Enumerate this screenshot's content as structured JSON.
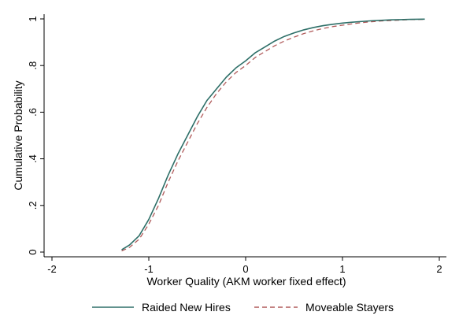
{
  "chart_data": {
    "type": "line",
    "title": "",
    "xlabel": "Worker Quality (AKM worker fixed effect)",
    "ylabel": "Cumulative Probability",
    "xlim": [
      -2,
      2
    ],
    "ylim": [
      0,
      1
    ],
    "xticks": [
      -2,
      -1,
      0,
      1,
      2
    ],
    "xtick_labels": [
      "-2",
      "-1",
      "0",
      "1",
      "2"
    ],
    "yticks": [
      0,
      0.2,
      0.4,
      0.6,
      0.8,
      1
    ],
    "ytick_labels": [
      "0",
      ".2",
      ".4",
      ".6",
      ".8",
      "1"
    ],
    "grid": false,
    "legend_position": "bottom",
    "series": [
      {
        "name": "Raided New Hires",
        "color": "#2e6f68",
        "style": "solid",
        "x": [
          -1.28,
          -1.2,
          -1.1,
          -1.0,
          -0.9,
          -0.8,
          -0.7,
          -0.6,
          -0.5,
          -0.4,
          -0.3,
          -0.2,
          -0.1,
          0.0,
          0.1,
          0.2,
          0.3,
          0.4,
          0.5,
          0.6,
          0.7,
          0.8,
          0.9,
          1.0,
          1.1,
          1.2,
          1.3,
          1.4,
          1.5,
          1.6,
          1.7,
          1.85
        ],
        "y": [
          0.01,
          0.03,
          0.07,
          0.14,
          0.23,
          0.33,
          0.42,
          0.5,
          0.58,
          0.65,
          0.7,
          0.75,
          0.79,
          0.82,
          0.855,
          0.88,
          0.905,
          0.925,
          0.94,
          0.953,
          0.963,
          0.971,
          0.977,
          0.982,
          0.986,
          0.989,
          0.992,
          0.994,
          0.996,
          0.997,
          0.998,
          0.999
        ]
      },
      {
        "name": "Moveable Stayers",
        "color": "#b05a5a",
        "style": "dashed",
        "x": [
          -1.28,
          -1.2,
          -1.1,
          -1.0,
          -0.9,
          -0.8,
          -0.7,
          -0.6,
          -0.5,
          -0.4,
          -0.3,
          -0.2,
          -0.1,
          0.0,
          0.1,
          0.2,
          0.3,
          0.4,
          0.5,
          0.6,
          0.7,
          0.8,
          0.9,
          1.0,
          1.1,
          1.2,
          1.3,
          1.4,
          1.5,
          1.6,
          1.7,
          1.85
        ],
        "y": [
          0.005,
          0.02,
          0.055,
          0.12,
          0.2,
          0.3,
          0.39,
          0.47,
          0.55,
          0.62,
          0.68,
          0.73,
          0.77,
          0.8,
          0.835,
          0.86,
          0.885,
          0.905,
          0.922,
          0.937,
          0.949,
          0.959,
          0.967,
          0.973,
          0.979,
          0.984,
          0.988,
          0.991,
          0.993,
          0.995,
          0.997,
          0.998
        ]
      }
    ]
  }
}
